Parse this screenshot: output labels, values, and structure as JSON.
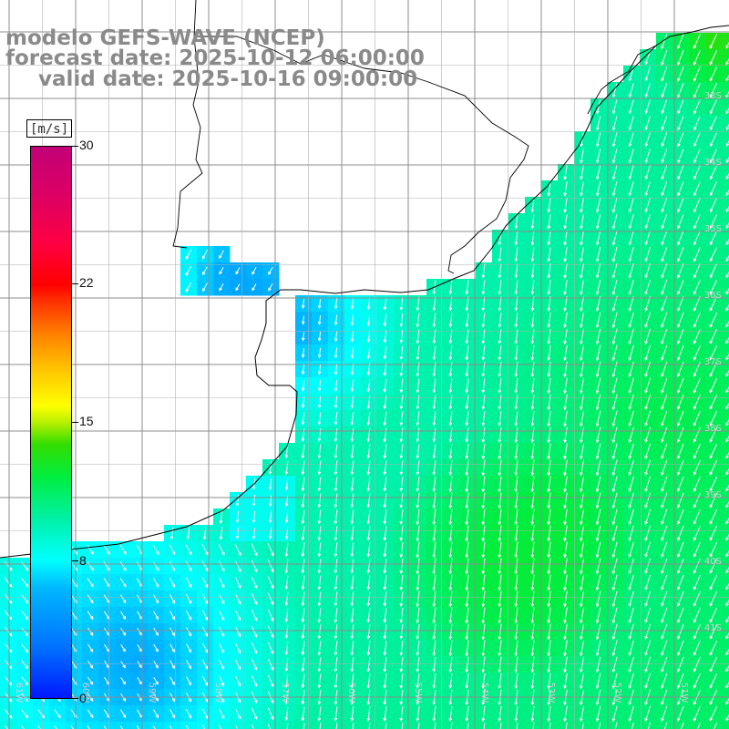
{
  "title": {
    "line1": "modelo GEFS-WAVE (NCEP)",
    "line2": "forecast date: 2025-10-12 06:00:00",
    "line3": "valid date: 2025-10-16 09:00:00"
  },
  "colorbar": {
    "units": "[m/s]",
    "ticks": [
      "30",
      "22",
      "15",
      "8",
      "0"
    ],
    "range": [
      0,
      30
    ]
  },
  "axes": {
    "lon_labels": [
      "61W",
      "60W",
      "59W",
      "58W",
      "57W",
      "56W",
      "55W",
      "54W",
      "53W",
      "52W",
      "51W"
    ],
    "lat_labels": [
      "33S",
      "34S",
      "35S",
      "36S",
      "37S",
      "38S",
      "39S",
      "40S",
      "41S"
    ]
  },
  "colors": {
    "land": "#ffffff",
    "grid": "#999999",
    "coast": "#000000",
    "arrows": "#ffffff",
    "title": "#8a8a8a"
  }
}
